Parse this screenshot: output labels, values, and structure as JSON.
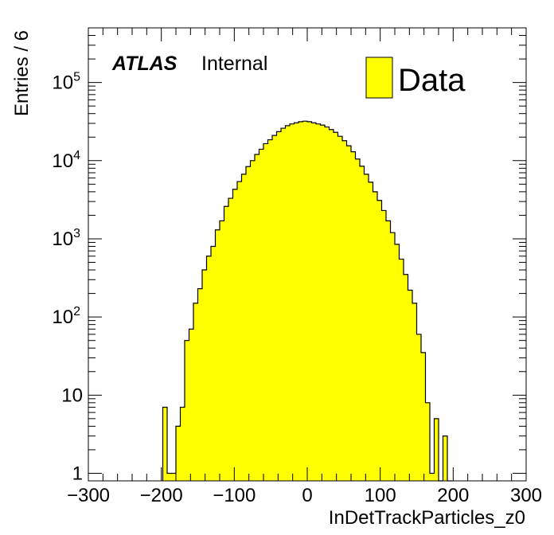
{
  "chart_data": {
    "type": "histogram",
    "xlabel": "InDetTrackParticles_z0",
    "ylabel": "Entries / 6",
    "x_range": [
      -300,
      300
    ],
    "y_range": [
      0.8,
      500000
    ],
    "y_scale": "log",
    "bin_width": 6,
    "x_ticks": [
      "−300",
      "−200",
      "−100",
      "0",
      "100",
      "200",
      "300"
    ],
    "y_ticks": [
      {
        "value": 1,
        "base": "1",
        "exp": ""
      },
      {
        "value": 10,
        "base": "10",
        "exp": ""
      },
      {
        "value": 100,
        "base": "10",
        "exp": "2"
      },
      {
        "value": 1000,
        "base": "10",
        "exp": "3"
      },
      {
        "value": 10000,
        "base": "10",
        "exp": "4"
      },
      {
        "value": 100000,
        "base": "10",
        "exp": "5"
      }
    ],
    "experiment_label": "ATLAS",
    "status_label": "Internal",
    "legend": {
      "position": "top-right",
      "entries": [
        {
          "label": "Data",
          "color": "#ffff00"
        }
      ]
    },
    "fill_color": "#ffff00",
    "line_color": "#000000",
    "series": [
      {
        "name": "Data",
        "bins": [
          {
            "x0": -198,
            "y": 7
          },
          {
            "x0": -192,
            "y": 1
          },
          {
            "x0": -186,
            "y": 1
          },
          {
            "x0": -180,
            "y": 4
          },
          {
            "x0": -174,
            "y": 7
          },
          {
            "x0": -168,
            "y": 50
          },
          {
            "x0": -162,
            "y": 70
          },
          {
            "x0": -156,
            "y": 150
          },
          {
            "x0": -150,
            "y": 230
          },
          {
            "x0": -144,
            "y": 400
          },
          {
            "x0": -138,
            "y": 600
          },
          {
            "x0": -132,
            "y": 800
          },
          {
            "x0": -126,
            "y": 1300
          },
          {
            "x0": -120,
            "y": 1700
          },
          {
            "x0": -114,
            "y": 2600
          },
          {
            "x0": -108,
            "y": 3300
          },
          {
            "x0": -102,
            "y": 4300
          },
          {
            "x0": -96,
            "y": 5400
          },
          {
            "x0": -90,
            "y": 6700
          },
          {
            "x0": -84,
            "y": 8400
          },
          {
            "x0": -78,
            "y": 10000
          },
          {
            "x0": -72,
            "y": 12000
          },
          {
            "x0": -66,
            "y": 14000
          },
          {
            "x0": -60,
            "y": 16500
          },
          {
            "x0": -54,
            "y": 18500
          },
          {
            "x0": -48,
            "y": 21000
          },
          {
            "x0": -42,
            "y": 23500
          },
          {
            "x0": -36,
            "y": 26000
          },
          {
            "x0": -30,
            "y": 28000
          },
          {
            "x0": -24,
            "y": 29500
          },
          {
            "x0": -18,
            "y": 30500
          },
          {
            "x0": -12,
            "y": 31500
          },
          {
            "x0": -6,
            "y": 32000
          },
          {
            "x0": 0,
            "y": 31500
          },
          {
            "x0": 6,
            "y": 30500
          },
          {
            "x0": 12,
            "y": 29500
          },
          {
            "x0": 18,
            "y": 28500
          },
          {
            "x0": 24,
            "y": 27000
          },
          {
            "x0": 30,
            "y": 25000
          },
          {
            "x0": 36,
            "y": 23000
          },
          {
            "x0": 42,
            "y": 20500
          },
          {
            "x0": 48,
            "y": 18000
          },
          {
            "x0": 54,
            "y": 15500
          },
          {
            "x0": 60,
            "y": 13000
          },
          {
            "x0": 66,
            "y": 10500
          },
          {
            "x0": 72,
            "y": 8500
          },
          {
            "x0": 78,
            "y": 6700
          },
          {
            "x0": 84,
            "y": 5300
          },
          {
            "x0": 90,
            "y": 4000
          },
          {
            "x0": 96,
            "y": 3100
          },
          {
            "x0": 102,
            "y": 2300
          },
          {
            "x0": 108,
            "y": 1700
          },
          {
            "x0": 114,
            "y": 1200
          },
          {
            "x0": 120,
            "y": 850
          },
          {
            "x0": 126,
            "y": 550
          },
          {
            "x0": 132,
            "y": 350
          },
          {
            "x0": 138,
            "y": 220
          },
          {
            "x0": 144,
            "y": 150
          },
          {
            "x0": 150,
            "y": 60
          },
          {
            "x0": 156,
            "y": 35
          },
          {
            "x0": 162,
            "y": 8
          },
          {
            "x0": 168,
            "y": 1
          },
          {
            "x0": 174,
            "y": 5
          },
          {
            "x0": 180,
            "y": 0
          },
          {
            "x0": 186,
            "y": 3
          },
          {
            "x0": 192,
            "y": 0
          }
        ]
      }
    ]
  }
}
